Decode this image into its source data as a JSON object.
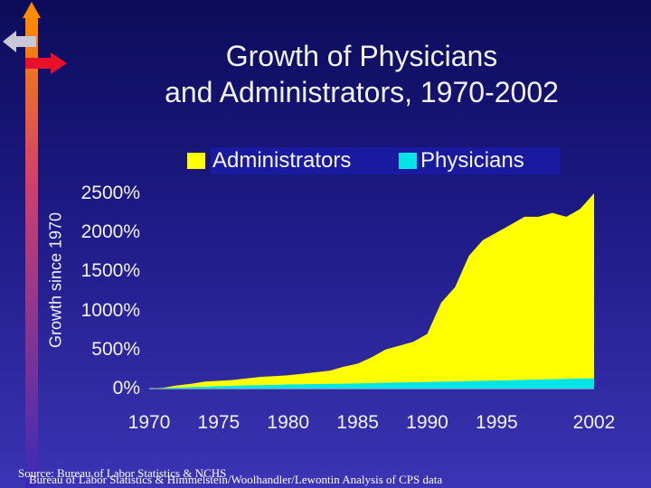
{
  "title_lines": [
    "Growth of Physicians",
    "and Administrators, 1970-2002"
  ],
  "source_lines": [
    "Source: Bureau of Labor Statistics & NCHS",
    "Bureau of Labor Statistics & Himmelstein/Woolhandler/Lewontin Analysis of CPS data"
  ],
  "decoration": {
    "icons": [
      "up-arrow-icon",
      "left-arrow-icon",
      "right-arrow-icon"
    ]
  },
  "chart_data": {
    "type": "area",
    "title": "Growth of Physicians and Administrators, 1970-2002",
    "xlabel": "",
    "ylabel": "Growth since 1970",
    "x_tick_labels": [
      "1970",
      "1975",
      "1980",
      "1985",
      "1990",
      "1995",
      "2002"
    ],
    "y_tick_labels": [
      "0%",
      "500%",
      "1000%",
      "1500%",
      "2000%",
      "2500%"
    ],
    "ylim": [
      0,
      2500
    ],
    "xlim": [
      1970,
      2002
    ],
    "legend_position": "top",
    "stacked": false,
    "x": [
      1970,
      1971,
      1972,
      1973,
      1974,
      1975,
      1976,
      1977,
      1978,
      1979,
      1980,
      1981,
      1982,
      1983,
      1984,
      1985,
      1986,
      1987,
      1988,
      1989,
      1990,
      1991,
      1992,
      1993,
      1994,
      1995,
      1996,
      1997,
      1998,
      1999,
      2000,
      2001,
      2002
    ],
    "series": [
      {
        "name": "Administrators",
        "color": "#ffff00",
        "values": [
          0,
          10,
          40,
          60,
          90,
          100,
          110,
          130,
          150,
          160,
          170,
          190,
          210,
          230,
          280,
          320,
          400,
          500,
          550,
          600,
          700,
          1100,
          1300,
          1700,
          1900,
          2000,
          2100,
          2200,
          2200,
          2250,
          2200,
          2300,
          2500
        ]
      },
      {
        "name": "Physicians",
        "color": "#00e6e6",
        "values": [
          0,
          6,
          12,
          18,
          24,
          30,
          36,
          40,
          44,
          48,
          52,
          56,
          58,
          60,
          63,
          66,
          70,
          75,
          78,
          81,
          84,
          88,
          92,
          96,
          100,
          104,
          108,
          112,
          116,
          120,
          124,
          128,
          130
        ]
      }
    ]
  }
}
